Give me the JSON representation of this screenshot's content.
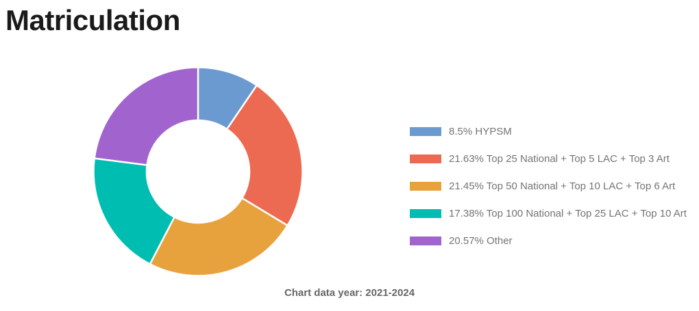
{
  "page": {
    "title": "Matriculation"
  },
  "chart_data": {
    "type": "pie",
    "donut": true,
    "title": "Matriculation",
    "legend_position": "right",
    "start_angle_deg": 0,
    "direction": "clockwise",
    "inner_radius_ratio": 0.49,
    "slice_gap_color": "#ffffff",
    "note": "Chart data year: 2021-2024",
    "slices": [
      {
        "id": "hypsm",
        "label": "HYPSM",
        "value": 8.5,
        "legend_label": "8.5% HYPSM",
        "color": "#6b9ad1"
      },
      {
        "id": "top25-national",
        "label": "Top 25 National + Top 5 LAC + Top 3 Art",
        "value": 21.63,
        "legend_label": "21.63% Top 25 National + Top 5 LAC + Top 3 Art",
        "color": "#ec6a52"
      },
      {
        "id": "top50-national",
        "label": "Top 50 National + Top 10 LAC + Top 6 Art",
        "value": 21.45,
        "legend_label": "21.45% Top 50 National + Top 10 LAC + Top 6 Art",
        "color": "#e8a23d"
      },
      {
        "id": "top100-national",
        "label": "Top 100 National + Top 25 LAC + Top 10 Art",
        "value": 17.38,
        "legend_label": "17.38% Top 100 National + Top 25 LAC + Top 10 Art",
        "color": "#00bdb1"
      },
      {
        "id": "other",
        "label": "Other",
        "value": 20.57,
        "legend_label": "20.57% Other",
        "color": "#a163ce"
      }
    ]
  }
}
